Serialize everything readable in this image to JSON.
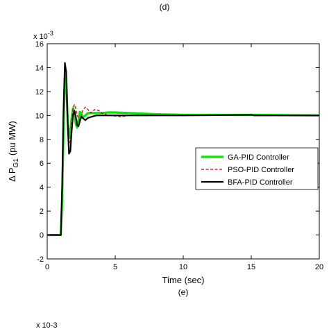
{
  "figure": {
    "top_panel_label": "(d)",
    "bottom_panel_label": "(e)",
    "next_panel_exponent": "x 10-3"
  },
  "chart_data": {
    "type": "line",
    "title": "",
    "xlabel": "Time (sec)",
    "ylabel": "Δ P_G1 (pu MW)",
    "ylabel_parts": {
      "delta": "Δ P",
      "subscript": "G1",
      "unit": "(pu MW)"
    },
    "y_multiplier": "x 10-3",
    "y_multiplier_parts": {
      "base": "x 10",
      "exponent": "-3"
    },
    "xlim": [
      0,
      20
    ],
    "ylim": [
      -2,
      16
    ],
    "x_ticks": [
      0,
      5,
      10,
      15,
      20
    ],
    "y_ticks": [
      -2,
      0,
      2,
      4,
      6,
      8,
      10,
      12,
      14,
      16
    ],
    "grid": false,
    "legend_position": "right-middle",
    "series": [
      {
        "name": "GA-PID Controller",
        "color": "#00e600",
        "style": "solid",
        "x": [
          0,
          1.0,
          1.1,
          1.2,
          1.3,
          1.4,
          1.5,
          1.6,
          1.7,
          1.8,
          1.9,
          2.0,
          2.1,
          2.2,
          2.3,
          2.4,
          2.5,
          2.6,
          2.8,
          3.0,
          3.5,
          4.0,
          4.5,
          5.0,
          6.0,
          7.0,
          8.0,
          10.0,
          15.0,
          20.0
        ],
        "y": [
          0,
          0,
          3.0,
          9.0,
          13.3,
          13.0,
          9.8,
          8.1,
          8.6,
          9.8,
          10.6,
          10.3,
          9.3,
          9.0,
          9.6,
          10.3,
          10.2,
          9.8,
          10.0,
          10.2,
          10.2,
          10.2,
          10.25,
          10.25,
          10.2,
          10.15,
          10.1,
          10.05,
          10.05,
          10.0
        ]
      },
      {
        "name": "PSO-PID Controller",
        "color": "#dd0000",
        "style": "dashed",
        "x": [
          0,
          1.0,
          1.1,
          1.2,
          1.3,
          1.4,
          1.5,
          1.6,
          1.7,
          1.8,
          1.9,
          2.0,
          2.1,
          2.2,
          2.4,
          2.6,
          2.8,
          3.0,
          3.2,
          3.5,
          3.8,
          4.0,
          4.5,
          5.0,
          5.5,
          6.0,
          7.0,
          8.0,
          10.0,
          15.0,
          20.0
        ],
        "y": [
          0,
          0,
          3.5,
          10.0,
          14.2,
          13.5,
          10.0,
          7.5,
          7.9,
          9.5,
          10.7,
          10.9,
          10.6,
          10.0,
          9.6,
          10.4,
          10.7,
          10.5,
          10.2,
          10.5,
          10.4,
          10.2,
          10.0,
          9.95,
          9.9,
          10.0,
          10.05,
          10.05,
          10.05,
          10.05,
          10.0
        ]
      },
      {
        "name": "BFA-PID Controller",
        "color": "#000000",
        "style": "solid",
        "x": [
          0,
          1.0,
          1.1,
          1.2,
          1.3,
          1.4,
          1.5,
          1.6,
          1.7,
          1.8,
          1.9,
          2.0,
          2.1,
          2.2,
          2.3,
          2.4,
          2.5,
          2.6,
          2.8,
          3.0,
          3.3,
          3.6,
          4.0,
          4.5,
          5.0,
          6.0,
          8.0,
          10.0,
          15.0,
          15.2,
          20.0
        ],
        "y": [
          0,
          0,
          4.0,
          10.5,
          14.4,
          13.6,
          9.5,
          6.8,
          7.0,
          8.7,
          10.0,
          10.4,
          9.9,
          9.2,
          9.1,
          9.5,
          9.9,
          9.8,
          9.6,
          9.8,
          9.9,
          10.0,
          10.0,
          10.0,
          10.0,
          10.0,
          10.0,
          10.0,
          10.05,
          10.0,
          10.0
        ]
      }
    ]
  }
}
